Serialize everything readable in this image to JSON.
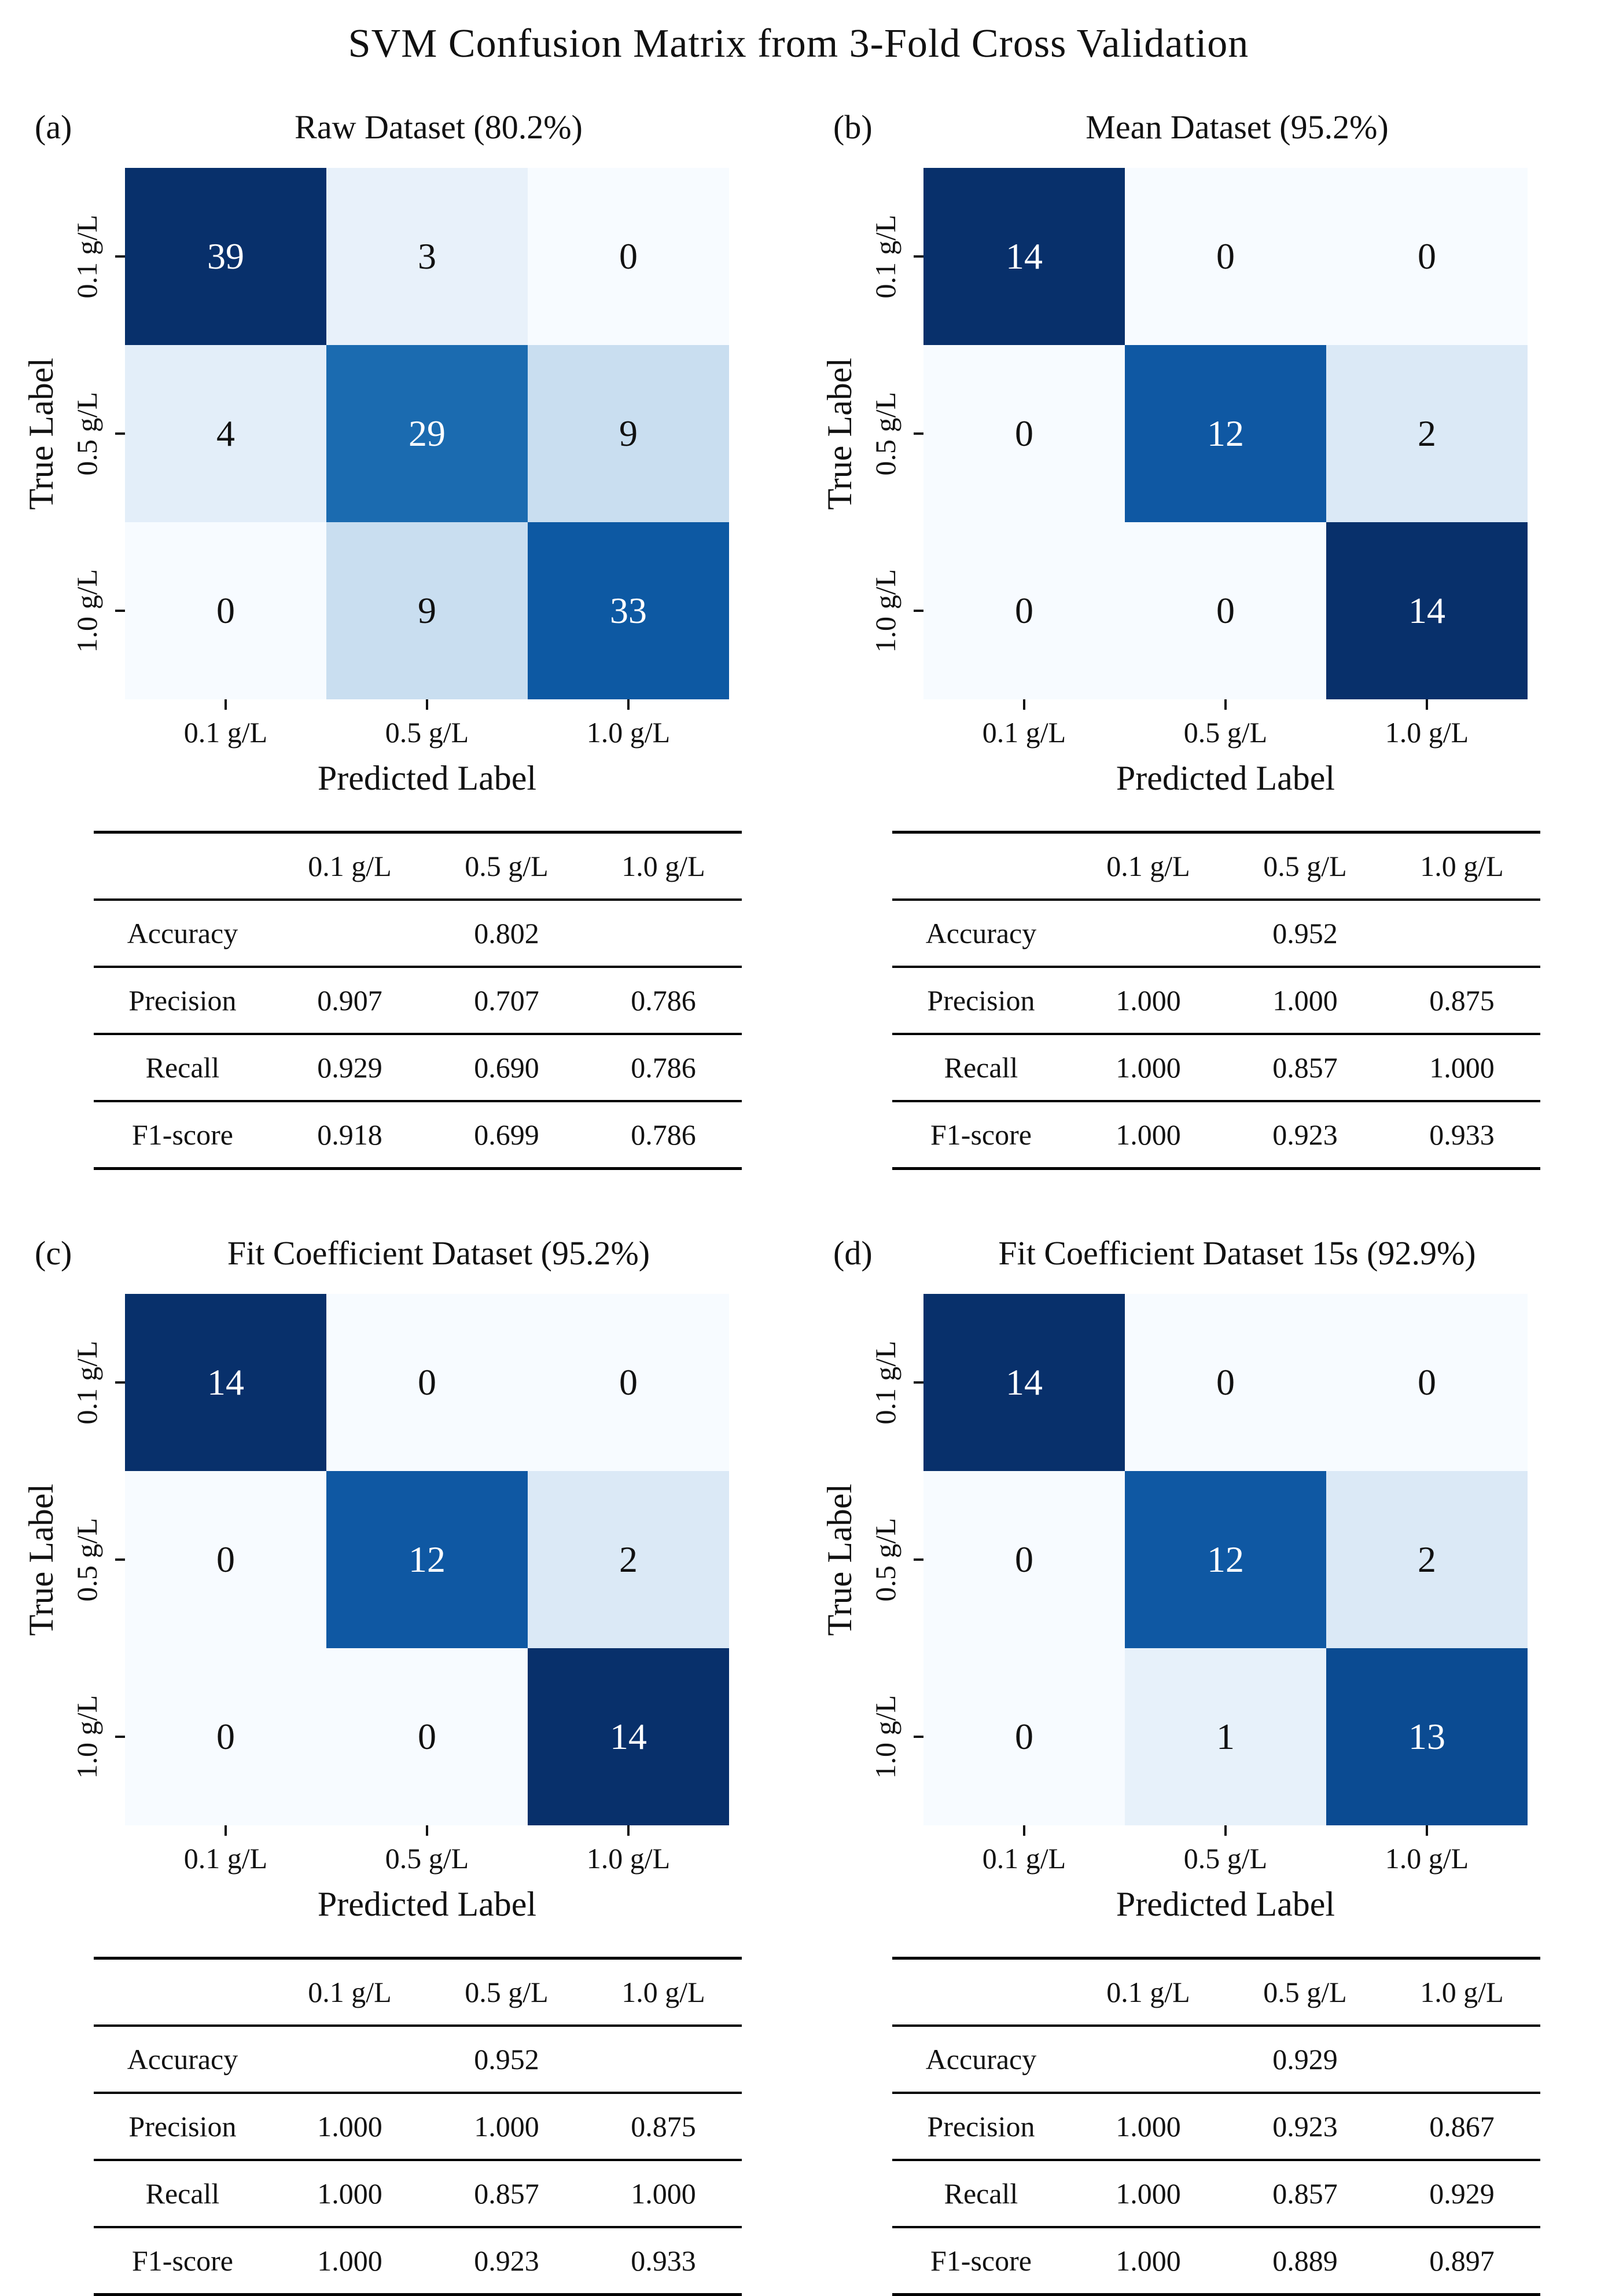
{
  "figure_title": "SVM Confusion Matrix from 3-Fold Cross Validation",
  "chart_data": [
    {
      "type": "heatmap",
      "tag": "(a)",
      "title": "Raw Dataset (80.2%)",
      "x_label": "Predicted Label",
      "y_label": "True Label",
      "classes": [
        "0.1 g/L",
        "0.5 g/L",
        "1.0 g/L"
      ],
      "matrix": {
        "values": [
          [
            "39",
            "3",
            "0"
          ],
          [
            "4",
            "29",
            "9"
          ],
          [
            "0",
            "9",
            "33"
          ]
        ],
        "cell_colors": [
          [
            "#08306b",
            "#e8f1fa",
            "#f7fbff"
          ],
          [
            "#e3eef9",
            "#1b6bb0",
            "#c9def0"
          ],
          [
            "#f7fbff",
            "#c9def0",
            "#0d59a3"
          ]
        ],
        "text_colors": [
          [
            "#ffffff",
            "#111111",
            "#111111"
          ],
          [
            "#111111",
            "#ffffff",
            "#111111"
          ],
          [
            "#111111",
            "#111111",
            "#ffffff"
          ]
        ]
      },
      "table": {
        "col_headers": [
          "",
          "0.1 g/L",
          "0.5 g/L",
          "1.0 g/L"
        ],
        "rows": [
          {
            "label": "Accuracy",
            "values": [
              "",
              "0.802",
              ""
            ]
          },
          {
            "label": "Precision",
            "values": [
              "0.907",
              "0.707",
              "0.786"
            ]
          },
          {
            "label": "Recall",
            "values": [
              "0.929",
              "0.690",
              "0.786"
            ]
          },
          {
            "label": "F1-score",
            "values": [
              "0.918",
              "0.699",
              "0.786"
            ]
          }
        ]
      }
    },
    {
      "type": "heatmap",
      "tag": "(b)",
      "title": "Mean Dataset (95.2%)",
      "x_label": "Predicted Label",
      "y_label": "True Label",
      "classes": [
        "0.1 g/L",
        "0.5 g/L",
        "1.0 g/L"
      ],
      "matrix": {
        "values": [
          [
            "14",
            "0",
            "0"
          ],
          [
            "0",
            "12",
            "2"
          ],
          [
            "0",
            "0",
            "14"
          ]
        ],
        "cell_colors": [
          [
            "#08306b",
            "#f7fbff",
            "#f7fbff"
          ],
          [
            "#f7fbff",
            "#0f58a3",
            "#dbe9f6"
          ],
          [
            "#f7fbff",
            "#f7fbff",
            "#08306b"
          ]
        ],
        "text_colors": [
          [
            "#ffffff",
            "#111111",
            "#111111"
          ],
          [
            "#111111",
            "#ffffff",
            "#111111"
          ],
          [
            "#111111",
            "#111111",
            "#ffffff"
          ]
        ]
      },
      "table": {
        "col_headers": [
          "",
          "0.1 g/L",
          "0.5 g/L",
          "1.0 g/L"
        ],
        "rows": [
          {
            "label": "Accuracy",
            "values": [
              "",
              "0.952",
              ""
            ]
          },
          {
            "label": "Precision",
            "values": [
              "1.000",
              "1.000",
              "0.875"
            ]
          },
          {
            "label": "Recall",
            "values": [
              "1.000",
              "0.857",
              "1.000"
            ]
          },
          {
            "label": "F1-score",
            "values": [
              "1.000",
              "0.923",
              "0.933"
            ]
          }
        ]
      }
    },
    {
      "type": "heatmap",
      "tag": "(c)",
      "title": "Fit Coefficient Dataset (95.2%)",
      "x_label": "Predicted Label",
      "y_label": "True Label",
      "classes": [
        "0.1 g/L",
        "0.5 g/L",
        "1.0 g/L"
      ],
      "matrix": {
        "values": [
          [
            "14",
            "0",
            "0"
          ],
          [
            "0",
            "12",
            "2"
          ],
          [
            "0",
            "0",
            "14"
          ]
        ],
        "cell_colors": [
          [
            "#08306b",
            "#f7fbff",
            "#f7fbff"
          ],
          [
            "#f7fbff",
            "#0f58a3",
            "#dbe9f6"
          ],
          [
            "#f7fbff",
            "#f7fbff",
            "#08306b"
          ]
        ],
        "text_colors": [
          [
            "#ffffff",
            "#111111",
            "#111111"
          ],
          [
            "#111111",
            "#ffffff",
            "#111111"
          ],
          [
            "#111111",
            "#111111",
            "#ffffff"
          ]
        ]
      },
      "table": {
        "col_headers": [
          "",
          "0.1 g/L",
          "0.5 g/L",
          "1.0 g/L"
        ],
        "rows": [
          {
            "label": "Accuracy",
            "values": [
              "",
              "0.952",
              ""
            ]
          },
          {
            "label": "Precision",
            "values": [
              "1.000",
              "1.000",
              "0.875"
            ]
          },
          {
            "label": "Recall",
            "values": [
              "1.000",
              "0.857",
              "1.000"
            ]
          },
          {
            "label": "F1-score",
            "values": [
              "1.000",
              "0.923",
              "0.933"
            ]
          }
        ]
      }
    },
    {
      "type": "heatmap",
      "tag": "(d)",
      "title": "Fit Coefficient Dataset 15s (92.9%)",
      "x_label": "Predicted Label",
      "y_label": "True Label",
      "classes": [
        "0.1 g/L",
        "0.5 g/L",
        "1.0 g/L"
      ],
      "matrix": {
        "values": [
          [
            "14",
            "0",
            "0"
          ],
          [
            "0",
            "12",
            "2"
          ],
          [
            "0",
            "1",
            "13"
          ]
        ],
        "cell_colors": [
          [
            "#08306b",
            "#f7fbff",
            "#f7fbff"
          ],
          [
            "#f7fbff",
            "#0f58a3",
            "#dbe9f6"
          ],
          [
            "#f7fbff",
            "#e7f1fa",
            "#0b4b92"
          ]
        ],
        "text_colors": [
          [
            "#ffffff",
            "#111111",
            "#111111"
          ],
          [
            "#111111",
            "#ffffff",
            "#111111"
          ],
          [
            "#111111",
            "#111111",
            "#ffffff"
          ]
        ]
      },
      "table": {
        "col_headers": [
          "",
          "0.1 g/L",
          "0.5 g/L",
          "1.0 g/L"
        ],
        "rows": [
          {
            "label": "Accuracy",
            "values": [
              "",
              "0.929",
              ""
            ]
          },
          {
            "label": "Precision",
            "values": [
              "1.000",
              "0.923",
              "0.867"
            ]
          },
          {
            "label": "Recall",
            "values": [
              "1.000",
              "0.857",
              "0.929"
            ]
          },
          {
            "label": "F1-score",
            "values": [
              "1.000",
              "0.889",
              "0.897"
            ]
          }
        ]
      }
    }
  ]
}
